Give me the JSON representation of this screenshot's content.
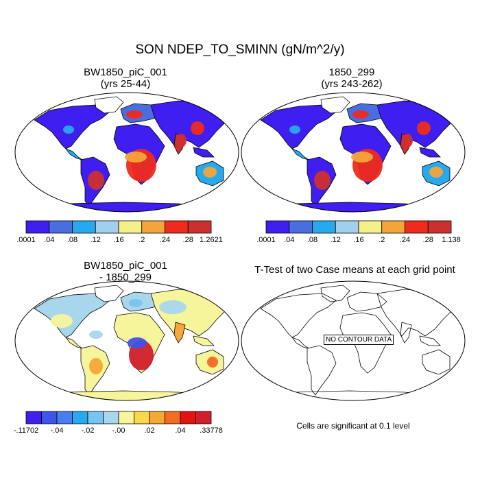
{
  "main_title": "SON NDEP_TO_SMINN (gN/m^2/y)",
  "panels": [
    {
      "title_line1": "BW1850_piC_001",
      "title_line2": "(yrs 25-44)"
    },
    {
      "title_line1": "1850_299",
      "title_line2": "(yrs 243-262)"
    },
    {
      "title_line1": "BW1850_piC_001",
      "title_line2": "- 1850_299"
    },
    {
      "title_line1": "T-Test of two Case means at each grid point",
      "title_line2": "",
      "center_label": "NO CONTOUR DATA",
      "footnote": "Cells are significant at 0.1 level"
    }
  ],
  "colorbars": [
    {
      "colors": [
        "#3e1ef0",
        "#4a6de0",
        "#27a9f0",
        "#a2d0ec",
        "#f5f08a",
        "#f3a43a",
        "#ee2b1c",
        "#cd2f2f"
      ],
      "labels": [
        ".0001",
        ".04",
        ".08",
        ".12",
        ".16",
        ".2",
        ".24",
        ".28",
        "1.2621"
      ]
    },
    {
      "colors": [
        "#3e1ef0",
        "#4a6de0",
        "#27a9f0",
        "#a2d0ec",
        "#f5f08a",
        "#f3a43a",
        "#ee2b1c",
        "#cd2f2f"
      ],
      "labels": [
        ".0001",
        ".04",
        ".08",
        ".12",
        ".16",
        ".2",
        ".24",
        ".28",
        "1.138"
      ]
    },
    {
      "colors": [
        "#3e1ef0",
        "#3f53e8",
        "#4a7ef0",
        "#27a9f0",
        "#78c4f0",
        "#a8d6ec",
        "#f7f59c",
        "#f9d94a",
        "#f4a838",
        "#f46b22",
        "#e6120e",
        "#d01f2c"
      ],
      "labels": [
        "-.11702",
        "-.04",
        "-.02",
        "-.00",
        ".02",
        ".04",
        ".33778"
      ]
    }
  ]
}
